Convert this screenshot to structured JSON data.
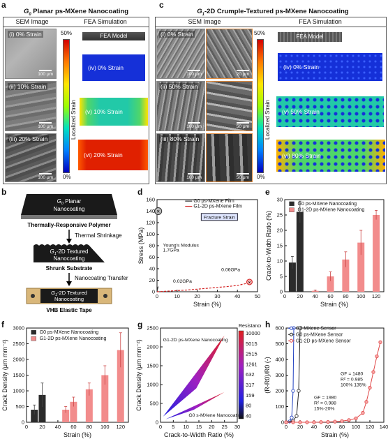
{
  "panels": {
    "a": {
      "letter": "a",
      "title_pre": "G",
      "title_sub": "0",
      "title_post": " Planar ps-MXene Nanocoating",
      "col_sem": "SEM Image",
      "col_fea": "FEA Simulation",
      "sem_images": [
        {
          "label": "(i) 0% Strain",
          "scale": "100 μm"
        },
        {
          "label": "(ii) 10% Strain",
          "scale": "100 μm"
        },
        {
          "label": "(iii) 20% Strain",
          "scale": "100 μm"
        }
      ],
      "fea": [
        {
          "label": "FEA Model"
        },
        {
          "label": "(iv) 0% Strain"
        },
        {
          "label": "(v) 10% Strain"
        },
        {
          "label": "(vi) 20% Strain"
        }
      ],
      "colorbar": {
        "top": "50%",
        "bottom": "0%",
        "label": "Localized Strain"
      }
    },
    "c": {
      "letter": "c",
      "title_pre": "G",
      "title_sub": "1",
      "title_post": "-2D Crumple-Textured ps-MXene Nanocoating",
      "col_sem": "SEM Image",
      "col_fea": "FEA Simulation",
      "sem_images": [
        {
          "label": "(i) 0% Strain",
          "scale": "100 μm",
          "scale2": "20 μm"
        },
        {
          "label": "(ii) 50% Strain",
          "scale": "100 μm",
          "scale2": "50 μm"
        },
        {
          "label": "(iii) 80% Strain",
          "scale": "100 μm",
          "scale2": "50 μm"
        }
      ],
      "fea": [
        {
          "label": "FEA Model"
        },
        {
          "label": "(iv) 0% Strain"
        },
        {
          "label": "(v) 50% Strain"
        },
        {
          "label": "(vi) 80% Strain"
        }
      ],
      "colorbar": {
        "top": "50%",
        "bottom": "0%",
        "label": "Localized Strain"
      }
    },
    "b": {
      "letter": "b",
      "g0_pre": "G",
      "g0_sub": "0",
      "g0_post": " Planar",
      "g0_line2": "Nanocoating",
      "polymer": "Thermally-Responsive Polymer",
      "shrink": "Thermal Shrinkage",
      "g1_pre": "G",
      "g1_sub": "1",
      "g1_post": "-2D Textured",
      "g1_line2": "Nanocoating",
      "substrate": "Shrunk Substrate",
      "transfer": "Nanocoating Transfer",
      "g1b_pre": "G",
      "g1b_sub": "1",
      "g1b_post": "-2D Textured",
      "g1b_line2": "Nanocoating",
      "tape": "VHB Elastic Tape"
    },
    "d": {
      "letter": "d"
    },
    "e": {
      "letter": "e"
    },
    "f": {
      "letter": "f"
    },
    "g": {
      "letter": "g"
    },
    "h": {
      "letter": "h"
    }
  },
  "chart_data": [
    {
      "panel": "d",
      "type": "line",
      "xlabel": "Strain (%)",
      "ylabel": "Stress (MPa)",
      "xlim": [
        0,
        50
      ],
      "ylim": [
        0,
        160
      ],
      "xticks": [
        0,
        10,
        20,
        30,
        40,
        50
      ],
      "yticks": [
        0,
        20,
        40,
        60,
        80,
        100,
        120,
        140,
        160
      ],
      "series": [
        {
          "name": "G0 ps-MXene Film",
          "color": "#333333",
          "x": [
            0,
            0.2,
            0.4,
            0.6
          ],
          "y": [
            0,
            4,
            7,
            9
          ]
        },
        {
          "name": "G1-2D ps-MXene Film",
          "color": "#d42020",
          "x": [
            0,
            5,
            10,
            15,
            20,
            25,
            30,
            35,
            40,
            44,
            46
          ],
          "y": [
            0,
            1,
            2,
            3,
            4.5,
            6,
            7.5,
            9,
            11,
            14,
            17
          ]
        }
      ],
      "annotations": {
        "modulus": [
          "Young's Modulus",
          "1.7GPa"
        ],
        "slope1": "0.02GPa",
        "slope2": "0.06GPa",
        "fracture": "Fracture Strain"
      }
    },
    {
      "panel": "e",
      "type": "bar",
      "xlabel": "Strain (%)",
      "ylabel": "Crack-to-Width Ratio (%)",
      "xlim": [
        0,
        130
      ],
      "ylim": [
        0,
        30
      ],
      "xticks": [
        0,
        20,
        40,
        60,
        80,
        100,
        120
      ],
      "yticks": [
        0,
        5,
        10,
        15,
        20,
        25,
        30
      ],
      "series": [
        {
          "name": "G0 ps-MXene Nanocoating",
          "color": "#2b2b2b",
          "x": [
            10,
            20
          ],
          "values": [
            9.5,
            26
          ],
          "err": [
            2,
            3.5
          ]
        },
        {
          "name": "G1-2D ps-MXene Nanocoating",
          "color": "#f28c8c",
          "x": [
            40,
            60,
            80,
            100,
            120
          ],
          "values": [
            0.3,
            5,
            10.5,
            16,
            25
          ],
          "err": [
            0.2,
            1.5,
            2.5,
            4,
            1.5
          ]
        }
      ]
    },
    {
      "panel": "f",
      "type": "bar",
      "xlabel": "Strain (%)",
      "ylabel": "Crack Density (μm mm⁻²)",
      "xlim": [
        0,
        130
      ],
      "ylim": [
        0,
        3000
      ],
      "xticks": [
        0,
        20,
        40,
        60,
        80,
        100,
        120
      ],
      "yticks": [
        0,
        500,
        1000,
        1500,
        2000,
        2500,
        3000
      ],
      "series": [
        {
          "name": "G0 ps-MXene Nanocoating",
          "color": "#2b2b2b",
          "x": [
            10,
            20
          ],
          "values": [
            400,
            870
          ],
          "err": [
            150,
            380
          ]
        },
        {
          "name": "G1-2D ps-MXene Nanocoating",
          "color": "#f28c8c",
          "x": [
            50,
            60,
            80,
            100,
            120
          ],
          "values": [
            400,
            650,
            1050,
            1500,
            2300
          ],
          "err": [
            100,
            150,
            200,
            300,
            550
          ]
        }
      ]
    },
    {
      "panel": "g",
      "type": "area",
      "xlabel": "Crack-to-Width Ratio (%)",
      "ylabel": "Crack Density (μm mm⁻²)",
      "xlim": [
        0,
        30
      ],
      "ylim": [
        0,
        2500
      ],
      "xticks": [
        0,
        5,
        10,
        15,
        20,
        25,
        30
      ],
      "yticks": [
        0,
        500,
        1000,
        1500,
        2000,
        2500
      ],
      "series": [
        {
          "name": "G1-2D ps-MXene Nanocoating",
          "x": [
            0,
            25
          ],
          "y": [
            0,
            2300
          ]
        },
        {
          "name": "G0 s-MXene Nanocoating",
          "x": [
            0,
            25
          ],
          "y": [
            0,
            800
          ]
        }
      ],
      "colorbar": {
        "title": "Resistance (Ω)",
        "ticks": [
          "10000",
          "5015",
          "2515",
          "1261",
          "632",
          "317",
          "159",
          "80",
          "40"
        ]
      }
    },
    {
      "panel": "h",
      "type": "line",
      "xlabel": "Strain (%)",
      "ylabel": "(R-R0)/R0 (-)",
      "xlim": [
        0,
        140
      ],
      "ylim": [
        0,
        600
      ],
      "xticks": [
        0,
        20,
        40,
        60,
        80,
        100,
        120,
        140
      ],
      "yticks": [
        0,
        100,
        200,
        300,
        400,
        500,
        600
      ],
      "series": [
        {
          "name": "G0 MXene Sensor",
          "color": "#2040c0",
          "x": [
            0,
            5,
            8,
            10,
            11
          ],
          "y": [
            0,
            5,
            30,
            200,
            600
          ]
        },
        {
          "name": "G0 ps-MXene Sensor",
          "color": "#222222",
          "x": [
            0,
            10,
            15,
            18,
            20
          ],
          "y": [
            0,
            10,
            40,
            200,
            600
          ]
        },
        {
          "name": "G1-2D ps-MXene Sensor",
          "color": "#e04848",
          "x": [
            0,
            10,
            20,
            30,
            40,
            50,
            60,
            70,
            80,
            90,
            100,
            110,
            115,
            120,
            125,
            130,
            135
          ],
          "y": [
            0,
            0,
            0,
            0,
            0,
            1,
            2,
            4,
            8,
            14,
            25,
            60,
            130,
            220,
            320,
            420,
            510
          ]
        }
      ],
      "annotations": {
        "gf1": [
          "GF = 1480",
          "R² = 0.985",
          "100% 135%"
        ],
        "gf2": [
          "GF = 1980",
          "R² = 0.988",
          "15%-20%"
        ]
      }
    }
  ]
}
